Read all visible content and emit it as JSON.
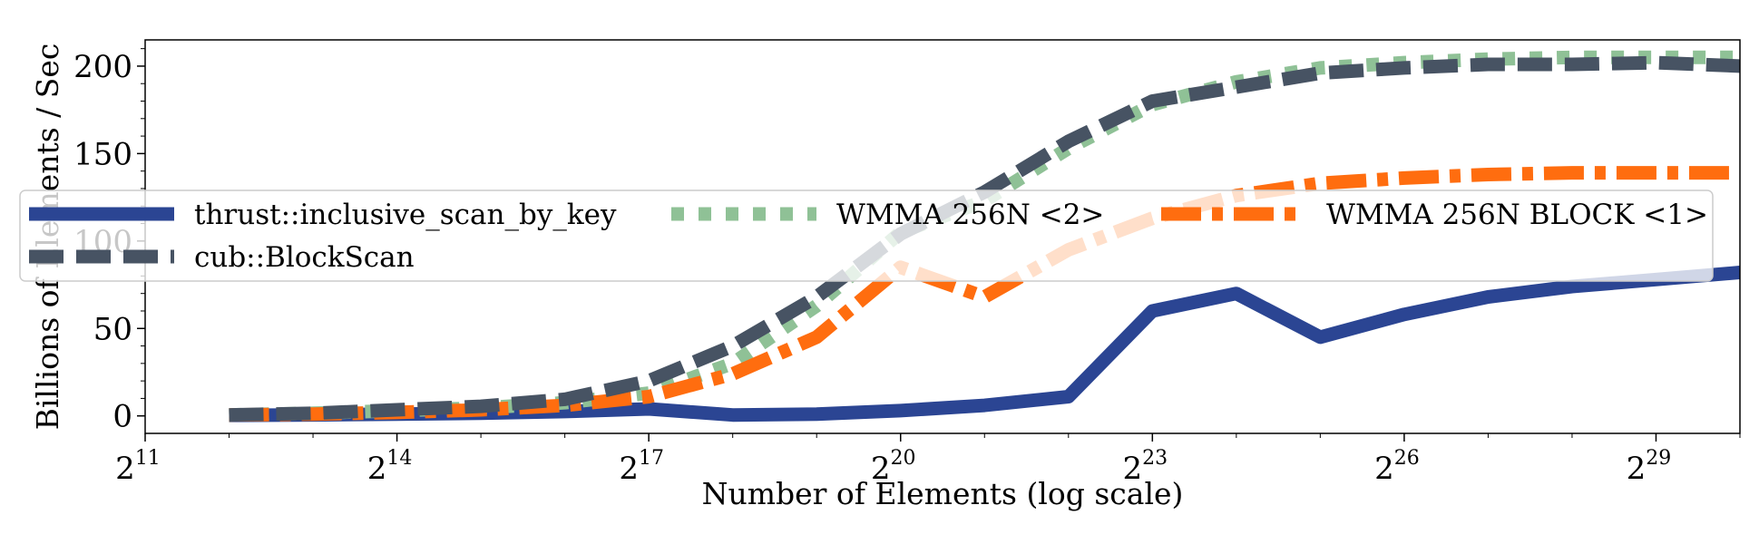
{
  "chart_data": {
    "type": "line",
    "xlabel": "Number of Elements (log scale)",
    "ylabel": "Billions of Elements / Sec",
    "x_scale": "log2",
    "x_tick_base": "2",
    "x_ticks": [
      11,
      14,
      17,
      20,
      23,
      26,
      29
    ],
    "x_tick_labels": [
      "11",
      "14",
      "17",
      "20",
      "23",
      "26",
      "29"
    ],
    "xlim_log2": [
      11,
      30
    ],
    "y_ticks": [
      0,
      50,
      100,
      150,
      200
    ],
    "ylim": [
      -10,
      215
    ],
    "grid": false,
    "legend_position": "upper-center, overlapping plot",
    "series": [
      {
        "name": "thrust::inclusive_scan_by_key",
        "color": "#2b4593",
        "style": "solid",
        "x_log2": [
          12,
          13,
          14,
          15,
          16,
          17,
          18,
          19,
          20,
          21,
          22,
          23,
          24,
          25,
          26,
          27,
          28,
          29,
          30
        ],
        "values": [
          0.3,
          0.6,
          1,
          1.5,
          2.5,
          4,
          0.5,
          1,
          3,
          6,
          11,
          60,
          70,
          45,
          58,
          68,
          74,
          78,
          82
        ]
      },
      {
        "name": "WMMA 256N <2>",
        "color": "#8fc196",
        "style": "dotted",
        "x_log2": [
          12,
          13,
          14,
          15,
          16,
          17,
          18,
          19,
          20,
          21,
          22,
          23,
          24,
          25,
          26,
          27,
          28,
          29,
          30
        ],
        "values": [
          0.5,
          1.5,
          3,
          4.5,
          7.5,
          13,
          30,
          63,
          105,
          123,
          153,
          178,
          191,
          199,
          202,
          204,
          205,
          205,
          205
        ]
      },
      {
        "name": "WMMA 256N BLOCK <1>",
        "color": "#ff6d0f",
        "style": "dashdot",
        "x_log2": [
          12,
          13,
          14,
          15,
          16,
          17,
          18,
          19,
          20,
          21,
          22,
          23,
          24,
          25,
          26,
          27,
          28,
          29,
          30
        ],
        "values": [
          0.5,
          1,
          2,
          3.5,
          6,
          11,
          24,
          45,
          85,
          68,
          95,
          113,
          126,
          133,
          136,
          138,
          139,
          139,
          139
        ]
      },
      {
        "name": "cub::BlockScan",
        "color": "#475363",
        "style": "dashed",
        "x_log2": [
          12,
          13,
          14,
          15,
          16,
          17,
          18,
          19,
          20,
          21,
          22,
          23,
          24,
          25,
          26,
          27,
          28,
          29,
          30
        ],
        "values": [
          0.5,
          1.5,
          3.5,
          5.5,
          9.5,
          20,
          40,
          68,
          104,
          128,
          157,
          180,
          188,
          196,
          199,
          201,
          201,
          202,
          200
        ]
      }
    ],
    "legend_order": [
      0,
      1,
      2,
      3
    ]
  }
}
